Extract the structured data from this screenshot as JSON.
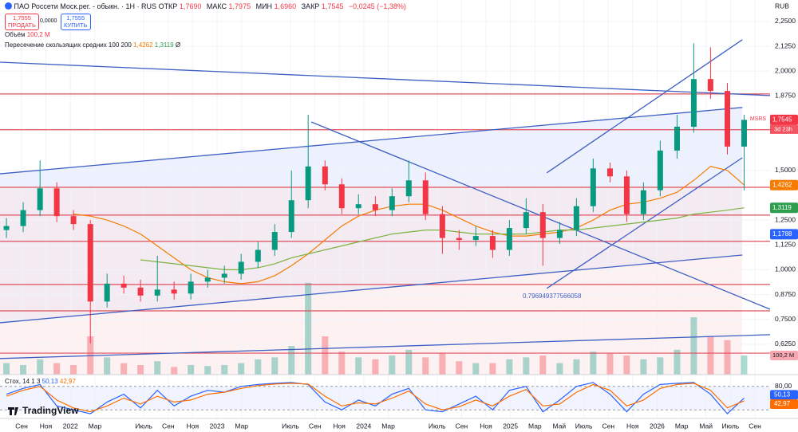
{
  "header": {
    "title": "ПАО Россети Моск.рег. - обыкн. · 1Н · RUS",
    "ohlc": [
      {
        "label": "ОТКР",
        "value": "1,7690"
      },
      {
        "label": "МАКС",
        "value": "1,7975"
      },
      {
        "label": "МИН",
        "value": "1,6960"
      },
      {
        "label": "ЗАКР",
        "value": "1,7545"
      }
    ],
    "change": "−0,0245 (−1,38%)",
    "currency": "RUB"
  },
  "trade": {
    "sell_price": "1,7555",
    "sell": "ПРОДАТЬ",
    "spread": "0,0000",
    "buy_price": "1,7555",
    "buy": "КУПИТЬ"
  },
  "indicators": {
    "volume_label": "Объём",
    "volume_value": "100,2 M",
    "ma_label": "Пересечение скользящих средних 100 200",
    "ma_values": [
      "1,4262",
      "1,3119"
    ],
    "ma_symbol": "Ø",
    "stoch_label": "Стох, 14 1 3",
    "stoch_values": [
      "50,13",
      "42,97"
    ]
  },
  "brand": "TradingView",
  "chart_data": {
    "type": "candlestick",
    "symbol": "MSRS",
    "countdown": "3d 23h",
    "annotation": "0.796949377566058",
    "up_color": "#089981",
    "down_color": "#f23645",
    "xlim": [
      2021.52,
      2026.77
    ],
    "ylim": [
      0.472,
      2.358
    ],
    "grid": true,
    "xticks": [
      {
        "value": 2021.667,
        "label": "Сен"
      },
      {
        "value": 2021.833,
        "label": "Ноя"
      },
      2022,
      {
        "value": 2022.167,
        "label": "Мар"
      },
      {
        "value": 2022.5,
        "label": "Июль"
      },
      {
        "value": 2022.667,
        "label": "Сен"
      },
      {
        "value": 2022.833,
        "label": "Ноя"
      },
      2023,
      {
        "value": 2023.167,
        "label": "Мар"
      },
      {
        "value": 2023.5,
        "label": "Июль"
      },
      {
        "value": 2023.667,
        "label": "Сен"
      },
      {
        "value": 2023.833,
        "label": "Ноя"
      },
      2024,
      {
        "value": 2024.167,
        "label": "Мар"
      },
      {
        "value": 2024.5,
        "label": "Июль"
      },
      {
        "value": 2024.667,
        "label": "Сен"
      },
      {
        "value": 2024.833,
        "label": "Ноя"
      },
      2025,
      {
        "value": 2025.167,
        "label": "Мар"
      },
      {
        "value": 2025.333,
        "label": "Май"
      },
      {
        "value": 2025.5,
        "label": "Июль"
      },
      {
        "value": 2025.667,
        "label": "Сен"
      },
      {
        "value": 2025.833,
        "label": "Ноя"
      },
      2026,
      {
        "value": 2026.167,
        "label": "Мар"
      },
      {
        "value": 2026.333,
        "label": "Май"
      },
      {
        "value": 2026.5,
        "label": "Июль"
      },
      {
        "value": 2026.667,
        "label": "Сен"
      }
    ],
    "yticks": [
      {
        "value": 2.25,
        "label": "2,2500"
      },
      {
        "value": 2.125,
        "label": "2,1250"
      },
      {
        "value": 2.0,
        "label": "2,0000"
      },
      {
        "value": 1.875,
        "label": "1,8750"
      },
      {
        "value": 1.5,
        "label": "1,5000"
      },
      {
        "value": 1.25,
        "label": "1,2500"
      },
      {
        "value": 1.125,
        "label": "1,1250"
      },
      {
        "value": 1.0,
        "label": "1,0000"
      },
      {
        "value": 0.875,
        "label": "0,8750"
      },
      {
        "value": 0.75,
        "label": "0,7500"
      },
      {
        "value": 0.625,
        "label": "0,6250"
      }
    ],
    "x": [
      2021.564,
      2021.678,
      2021.793,
      2021.907,
      2022.021,
      2022.136,
      2022.25,
      2022.364,
      2022.478,
      2022.593,
      2022.707,
      2022.821,
      2022.936,
      2023.05,
      2023.164,
      2023.279,
      2023.393,
      2023.507,
      2023.621,
      2023.736,
      2023.85,
      2023.964,
      2024.079,
      2024.193,
      2024.307,
      2024.421,
      2024.536,
      2024.65,
      2024.764,
      2024.879,
      2024.993,
      2025.107,
      2025.221,
      2025.336,
      2025.45,
      2025.564,
      2025.679,
      2025.793,
      2025.907,
      2026.021,
      2026.136,
      2026.25,
      2026.364,
      2026.479,
      2026.593
    ],
    "open": [
      1.2,
      1.22,
      1.3,
      1.41,
      1.27,
      1.23,
      0.84,
      0.93,
      0.91,
      0.87,
      0.9,
      0.88,
      0.94,
      0.96,
      0.98,
      1.04,
      1.1,
      1.19,
      1.35,
      1.52,
      1.43,
      1.31,
      1.33,
      1.3,
      1.37,
      1.45,
      1.28,
      1.16,
      1.15,
      1.17,
      1.1,
      1.21,
      1.29,
      1.16,
      1.2,
      1.32,
      1.51,
      1.47,
      1.28,
      1.4,
      1.6,
      1.72,
      1.96,
      1.9,
      1.62
    ],
    "high": [
      1.26,
      1.34,
      1.55,
      1.44,
      1.3,
      1.25,
      0.98,
      0.97,
      0.95,
      1.07,
      0.94,
      0.98,
      1.0,
      1.02,
      1.08,
      1.14,
      1.23,
      1.5,
      1.78,
      1.55,
      1.46,
      1.38,
      1.37,
      1.41,
      1.55,
      1.49,
      1.32,
      1.2,
      1.22,
      1.2,
      1.25,
      1.36,
      1.33,
      1.24,
      1.36,
      1.56,
      1.54,
      1.5,
      1.44,
      1.65,
      1.78,
      2.14,
      2.12,
      1.94,
      1.78
    ],
    "low": [
      1.16,
      1.19,
      1.27,
      1.24,
      1.2,
      0.63,
      0.81,
      0.88,
      0.84,
      0.84,
      0.85,
      0.85,
      0.91,
      0.93,
      0.95,
      1.01,
      1.07,
      1.16,
      1.31,
      1.4,
      1.28,
      1.28,
      1.27,
      1.27,
      1.34,
      1.25,
      1.08,
      1.1,
      1.12,
      1.06,
      1.07,
      1.18,
      1.02,
      1.13,
      1.17,
      1.29,
      1.44,
      1.24,
      1.25,
      1.37,
      1.56,
      1.69,
      1.86,
      1.58,
      1.4
    ],
    "close": [
      1.22,
      1.3,
      1.41,
      1.27,
      1.23,
      0.84,
      0.93,
      0.91,
      0.87,
      0.9,
      0.88,
      0.94,
      0.96,
      0.98,
      1.04,
      1.1,
      1.19,
      1.35,
      1.52,
      1.43,
      1.31,
      1.33,
      1.3,
      1.37,
      1.45,
      1.28,
      1.16,
      1.15,
      1.17,
      1.1,
      1.21,
      1.29,
      1.16,
      1.2,
      1.32,
      1.51,
      1.47,
      1.28,
      1.4,
      1.6,
      1.72,
      1.96,
      1.9,
      1.62,
      1.7545
    ],
    "ma": [
      {
        "name": "MA 100",
        "color": "#f57c00",
        "values": [
          null,
          null,
          null,
          null,
          1.28,
          1.27,
          1.25,
          1.22,
          1.18,
          1.12,
          1.06,
          1.0,
          0.96,
          0.94,
          0.93,
          0.94,
          0.97,
          1.02,
          1.08,
          1.15,
          1.22,
          1.27,
          1.3,
          1.32,
          1.33,
          1.33,
          1.3,
          1.26,
          1.22,
          1.19,
          1.17,
          1.17,
          1.18,
          1.19,
          1.21,
          1.25,
          1.3,
          1.33,
          1.34,
          1.36,
          1.39,
          1.45,
          1.52,
          1.5,
          1.4262
        ]
      },
      {
        "name": "MA 200",
        "color": "#7cb342",
        "values": [
          null,
          null,
          null,
          null,
          null,
          null,
          null,
          null,
          1.05,
          1.04,
          1.03,
          1.02,
          1.01,
          1.0,
          1.0,
          1.01,
          1.03,
          1.06,
          1.08,
          1.1,
          1.12,
          1.14,
          1.16,
          1.18,
          1.19,
          1.2,
          1.2,
          1.19,
          1.18,
          1.18,
          1.18,
          1.18,
          1.19,
          1.2,
          1.2,
          1.21,
          1.22,
          1.23,
          1.24,
          1.25,
          1.26,
          1.28,
          1.29,
          1.3,
          1.3119
        ]
      }
    ],
    "levels": [
      1.885,
      1.705,
      1.415,
      1.275,
      1.143,
      0.926,
      0.793,
      0.58
    ],
    "level_color": "#e0505f",
    "trendlines": [
      {
        "t": [
          2021.52,
          2026.77
        ],
        "price": [
          2.045,
          1.877
        ]
      },
      {
        "t": [
          2021.52,
          2026.581
        ],
        "price": [
          1.483,
          1.817
        ]
      },
      {
        "t": [
          2021.52,
          2026.581
        ],
        "price": [
          0.733,
          1.074
        ]
      },
      {
        "t": [
          2021.52,
          2026.77
        ],
        "price": [
          0.553,
          0.673
        ]
      },
      {
        "t": [
          2023.642,
          2026.77
        ],
        "price": [
          1.744,
          0.801
        ]
      },
      {
        "t": [
          2025.248,
          2026.581
        ],
        "price": [
          1.488,
          2.158
        ]
      },
      {
        "t": [
          2025.248,
          2026.581
        ],
        "price": [
          0.906,
          1.564
        ]
      }
    ],
    "trend_color": "#3d5fc4",
    "price_labels": [
      {
        "value": 1.7545,
        "label": "1,7545",
        "color": "#f23645"
      },
      {
        "value": 1.4262,
        "label": "1,4262",
        "color": "#f57c00"
      },
      {
        "value": 1.3119,
        "label": "1,3119",
        "color": "#2e9e4e"
      },
      {
        "value": 1.1788,
        "label": "1,1788",
        "color": "#2962ff"
      }
    ],
    "volume": {
      "ylim": [
        0,
        500
      ],
      "values": [
        60,
        50,
        80,
        60,
        50,
        200,
        90,
        60,
        50,
        70,
        40,
        50,
        45,
        50,
        60,
        80,
        90,
        150,
        480,
        200,
        120,
        90,
        80,
        100,
        130,
        90,
        110,
        70,
        60,
        60,
        80,
        90,
        100,
        60,
        80,
        120,
        110,
        100,
        80,
        90,
        130,
        300,
        200,
        180,
        100.2
      ]
    },
    "stochastic": {
      "ylim": [
        0,
        100
      ],
      "yticks": [
        {
          "value": 80,
          "label": "80,00"
        }
      ],
      "level_lines": [
        80,
        20
      ],
      "series": [
        {
          "name": "%K",
          "color": "#2962ff",
          "values": [
            60,
            75,
            85,
            30,
            20,
            10,
            40,
            60,
            25,
            70,
            30,
            55,
            70,
            65,
            80,
            85,
            88,
            90,
            85,
            40,
            20,
            45,
            30,
            60,
            75,
            20,
            15,
            35,
            55,
            20,
            70,
            80,
            15,
            45,
            80,
            90,
            60,
            15,
            60,
            85,
            88,
            90,
            60,
            10,
            50.13
          ]
        },
        {
          "name": "%D",
          "color": "#ff6d00",
          "values": [
            55,
            70,
            80,
            45,
            25,
            15,
            30,
            50,
            35,
            55,
            40,
            45,
            60,
            65,
            75,
            82,
            86,
            88,
            86,
            55,
            30,
            38,
            35,
            50,
            68,
            35,
            20,
            28,
            45,
            30,
            55,
            72,
            30,
            35,
            65,
            85,
            70,
            30,
            45,
            75,
            85,
            88,
            70,
            25,
            42.97
          ]
        }
      ]
    }
  }
}
